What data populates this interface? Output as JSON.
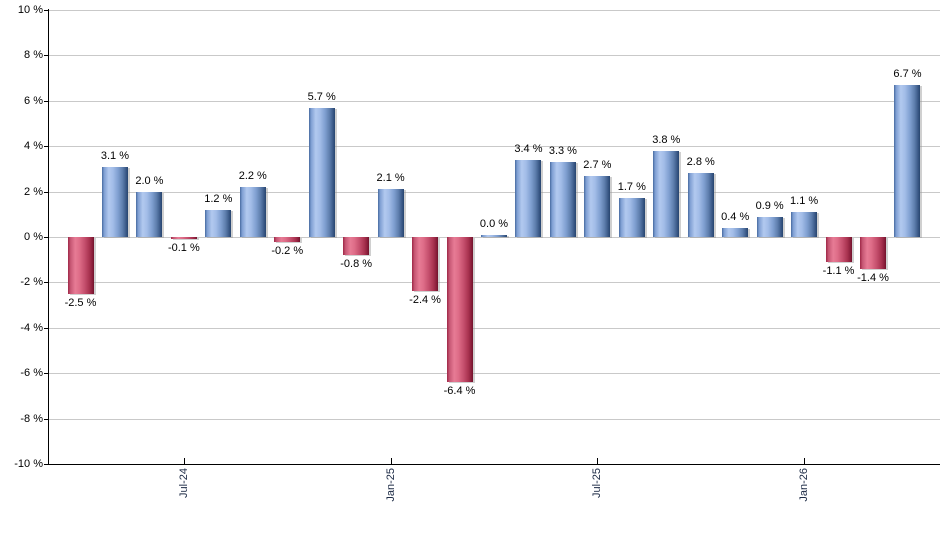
{
  "chart_data": {
    "type": "bar",
    "title": "",
    "xlabel": "",
    "ylabel": "",
    "grid": true,
    "legend_position": "none",
    "unit": "%",
    "y_axis": {
      "min": -10,
      "max": 10,
      "step": 2,
      "tick_labels": [
        "10 %",
        "8 %",
        "6 %",
        "4 %",
        "2 %",
        "0 %",
        "-2 %",
        "-4 %",
        "-6 %",
        "-8 %",
        "-10 %"
      ]
    },
    "x_ticks": [
      {
        "label": "Jul-24",
        "bar_index": 3
      },
      {
        "label": "Jan-25",
        "bar_index": 9
      },
      {
        "label": "Jul-25",
        "bar_index": 15
      },
      {
        "label": "Jan-26",
        "bar_index": 21
      }
    ],
    "bars": [
      {
        "value": -2.5,
        "label": "-2.5 %"
      },
      {
        "value": 3.1,
        "label": "3.1 %"
      },
      {
        "value": 2.0,
        "label": "2.0 %"
      },
      {
        "value": -0.1,
        "label": "-0.1 %"
      },
      {
        "value": 1.2,
        "label": "1.2 %"
      },
      {
        "value": 2.2,
        "label": "2.2 %"
      },
      {
        "value": -0.2,
        "label": "-0.2 %"
      },
      {
        "value": 5.7,
        "label": "5.7 %"
      },
      {
        "value": -0.8,
        "label": "-0.8 %"
      },
      {
        "value": 2.1,
        "label": "2.1 %"
      },
      {
        "value": -2.4,
        "label": "-2.4 %"
      },
      {
        "value": -6.4,
        "label": "-6.4 %"
      },
      {
        "value": 0.0,
        "label": "0.0 %"
      },
      {
        "value": 3.4,
        "label": "3.4 %"
      },
      {
        "value": 3.3,
        "label": "3.3 %"
      },
      {
        "value": 2.7,
        "label": "2.7 %"
      },
      {
        "value": 1.7,
        "label": "1.7 %"
      },
      {
        "value": 3.8,
        "label": "3.8 %"
      },
      {
        "value": 2.8,
        "label": "2.8 %"
      },
      {
        "value": 0.4,
        "label": "0.4 %"
      },
      {
        "value": 0.9,
        "label": "0.9 %"
      },
      {
        "value": 1.1,
        "label": "1.1 %"
      },
      {
        "value": -1.1,
        "label": "-1.1 %"
      },
      {
        "value": -1.4,
        "label": "-1.4 %"
      },
      {
        "value": 6.7,
        "label": "6.7 %"
      }
    ],
    "colors": {
      "positive_bar": "#7e9ed2",
      "negative_bar": "#c75875",
      "gridline": "#c9c9c9",
      "axis": "#000000"
    }
  }
}
